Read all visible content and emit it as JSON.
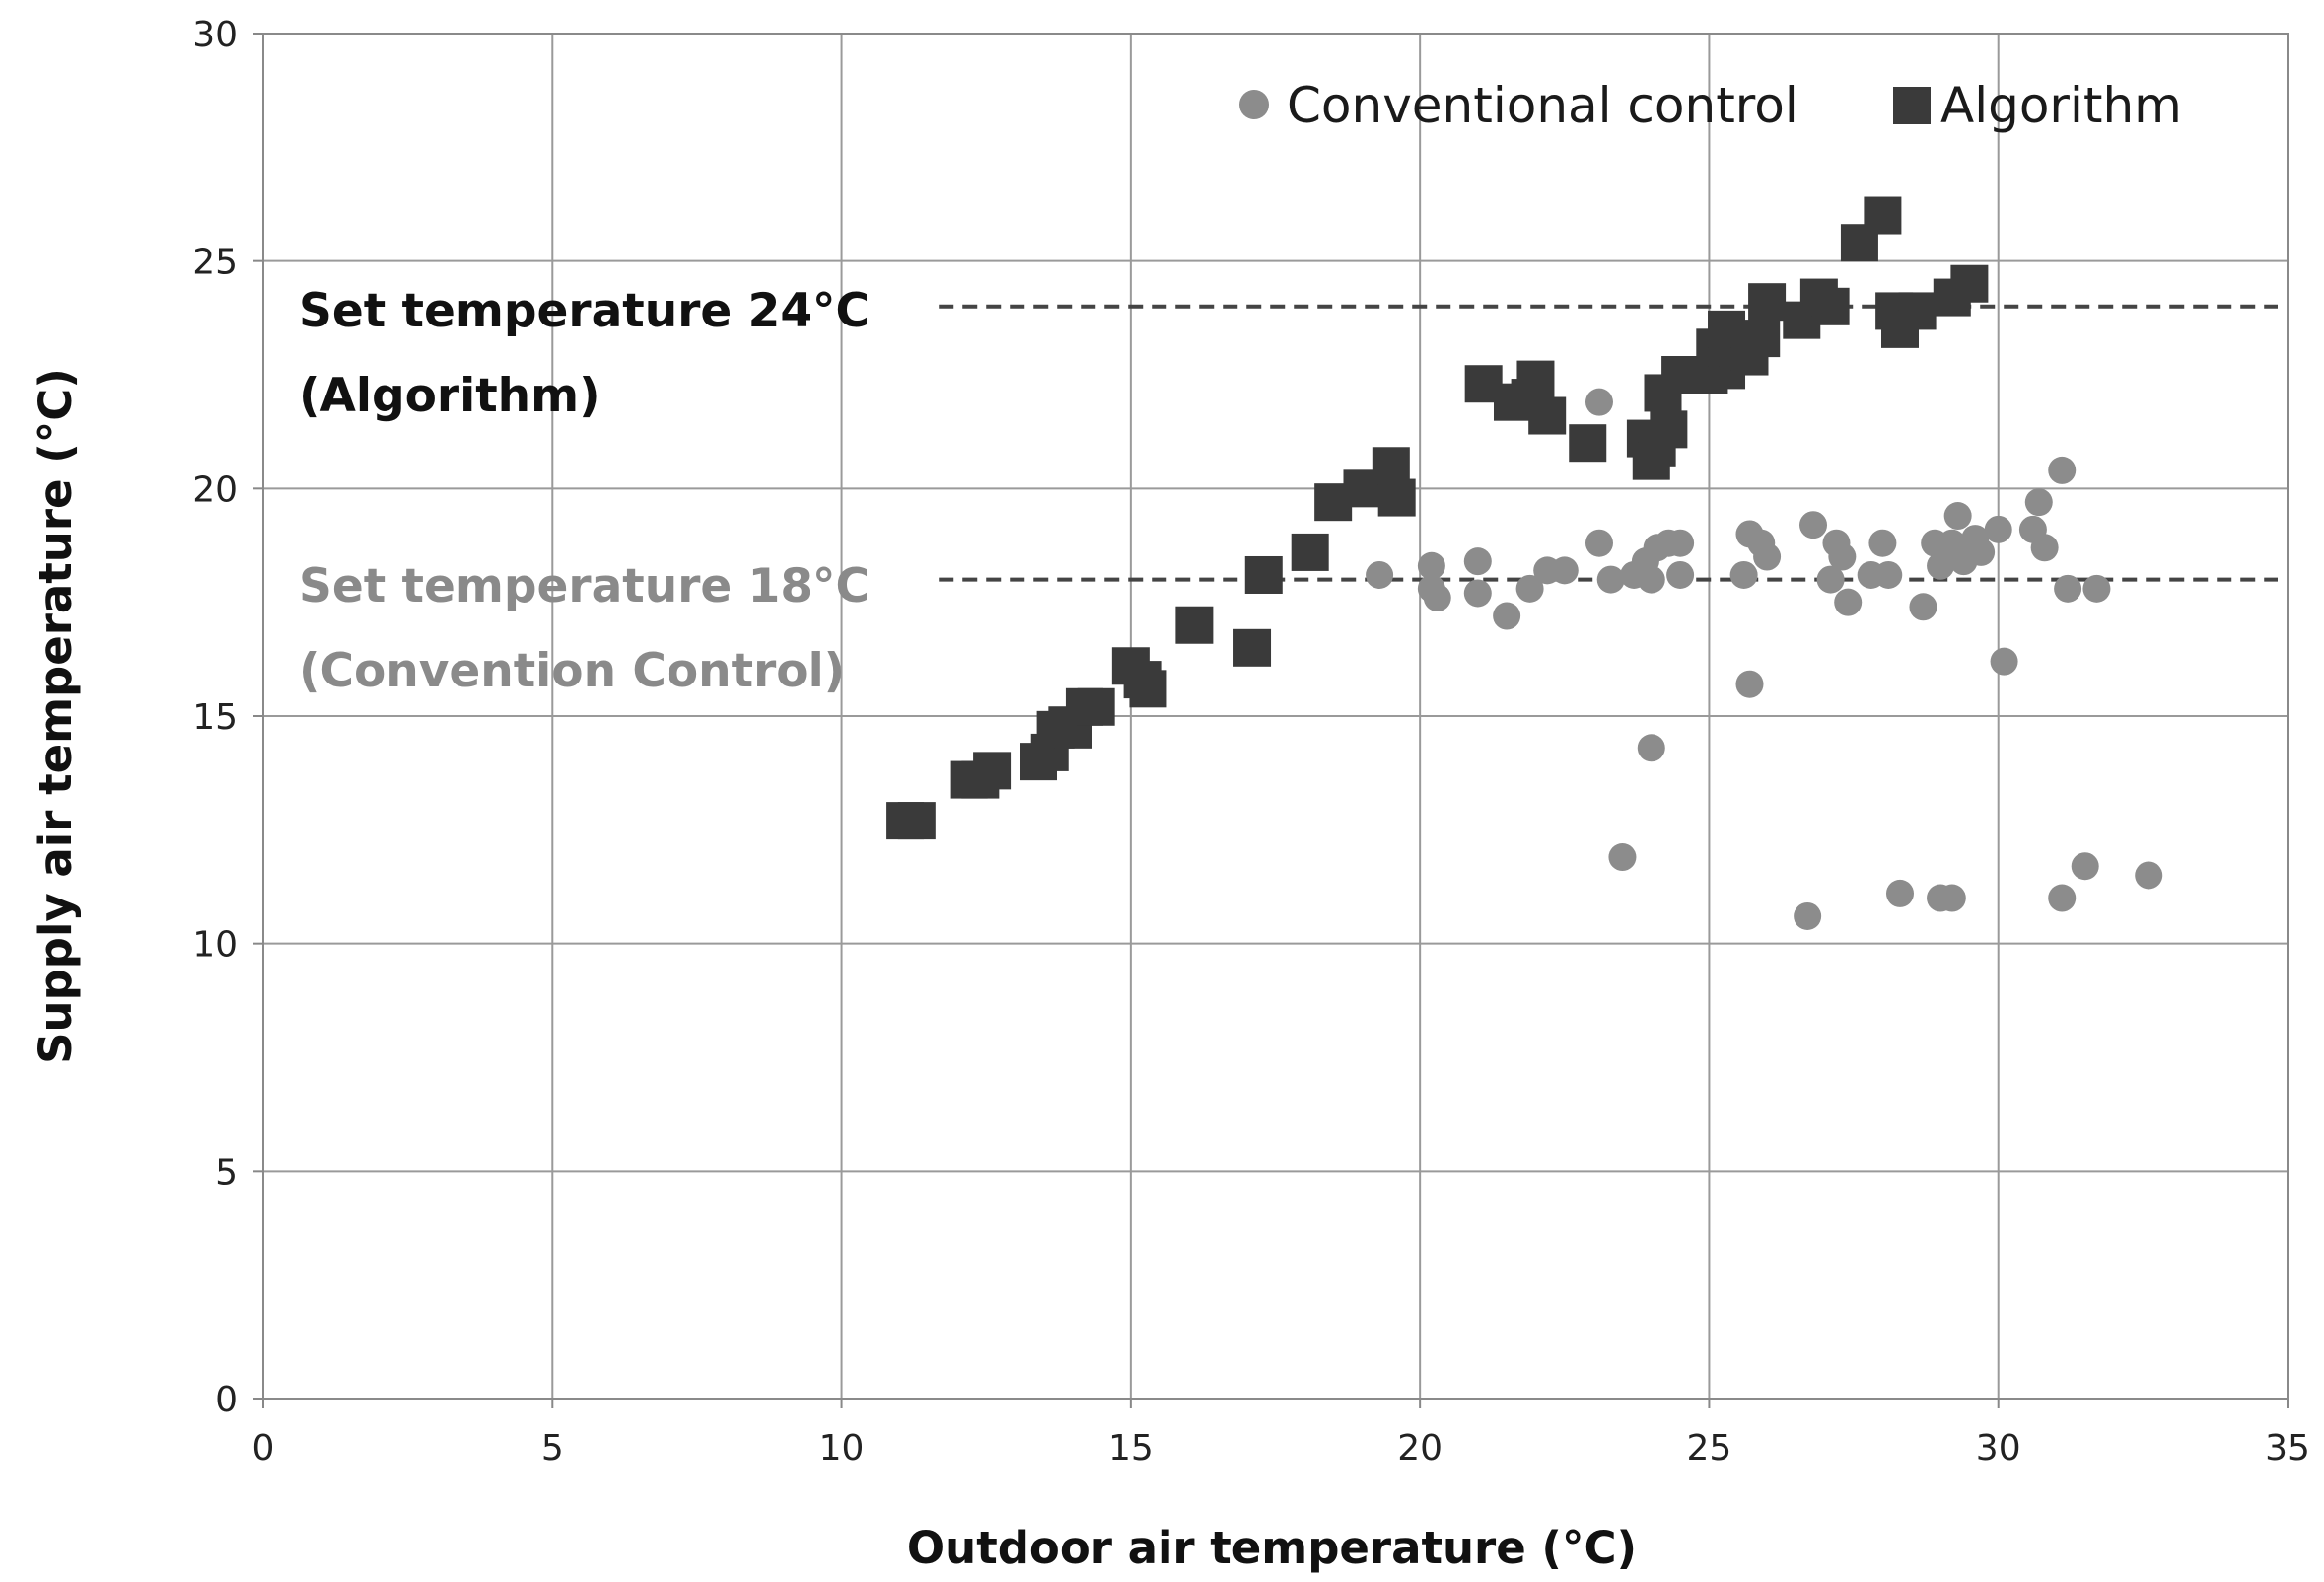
{
  "chart_data": {
    "type": "scatter",
    "title": "",
    "xlabel": "Outdoor air temperature (°C)",
    "ylabel": "Supply air temperature (°C)",
    "xlim": [
      0,
      35
    ],
    "ylim": [
      0,
      30
    ],
    "xticks": [
      0,
      5,
      10,
      15,
      20,
      25,
      30,
      35
    ],
    "yticks": [
      0,
      5,
      10,
      15,
      20,
      25,
      30
    ],
    "grid": true,
    "legend_position": "top-right",
    "colors": {
      "conventional": "#8c8c8c",
      "algorithm": "#3a3a3a",
      "grid": "#9a9a9a",
      "set_line": "#444444"
    },
    "series": [
      {
        "name": "Conventional control",
        "marker": "circle",
        "points": [
          [
            19.3,
            18.1
          ],
          [
            20.2,
            18.3
          ],
          [
            20.2,
            17.8
          ],
          [
            20.3,
            17.6
          ],
          [
            21.0,
            18.4
          ],
          [
            21.0,
            17.7
          ],
          [
            21.5,
            17.2
          ],
          [
            21.9,
            17.8
          ],
          [
            22.2,
            18.2
          ],
          [
            22.5,
            18.2
          ],
          [
            23.1,
            18.8
          ],
          [
            23.1,
            21.9
          ],
          [
            23.3,
            18.0
          ],
          [
            23.5,
            11.9
          ],
          [
            23.7,
            18.1
          ],
          [
            23.9,
            18.4
          ],
          [
            24.0,
            14.3
          ],
          [
            24.0,
            18.0
          ],
          [
            24.1,
            18.7
          ],
          [
            24.3,
            18.8
          ],
          [
            24.5,
            18.1
          ],
          [
            24.5,
            18.8
          ],
          [
            25.6,
            18.1
          ],
          [
            25.7,
            19.0
          ],
          [
            25.7,
            15.7
          ],
          [
            25.9,
            18.8
          ],
          [
            26.0,
            18.5
          ],
          [
            26.7,
            10.6
          ],
          [
            26.8,
            19.2
          ],
          [
            27.1,
            18.0
          ],
          [
            27.2,
            18.8
          ],
          [
            27.3,
            18.5
          ],
          [
            27.4,
            17.5
          ],
          [
            27.8,
            18.1
          ],
          [
            28.0,
            18.8
          ],
          [
            28.1,
            18.1
          ],
          [
            28.3,
            11.1
          ],
          [
            28.7,
            17.4
          ],
          [
            28.9,
            18.8
          ],
          [
            29.0,
            18.3
          ],
          [
            29.0,
            11.0
          ],
          [
            29.2,
            11.0
          ],
          [
            29.2,
            18.8
          ],
          [
            29.3,
            19.4
          ],
          [
            29.4,
            18.4
          ],
          [
            29.6,
            18.9
          ],
          [
            29.7,
            18.6
          ],
          [
            30.0,
            19.1
          ],
          [
            30.1,
            16.2
          ],
          [
            30.6,
            19.1
          ],
          [
            30.7,
            19.7
          ],
          [
            30.8,
            18.7
          ],
          [
            31.1,
            20.4
          ],
          [
            31.1,
            11.0
          ],
          [
            31.2,
            17.8
          ],
          [
            31.5,
            11.7
          ],
          [
            31.7,
            17.8
          ],
          [
            32.6,
            11.5
          ]
        ]
      },
      {
        "name": "Algorithm",
        "marker": "square",
        "points": [
          [
            11.1,
            12.7
          ],
          [
            11.3,
            12.7
          ],
          [
            12.2,
            13.6
          ],
          [
            12.4,
            13.6
          ],
          [
            12.6,
            13.8
          ],
          [
            13.4,
            14.0
          ],
          [
            13.6,
            14.2
          ],
          [
            13.7,
            14.7
          ],
          [
            13.9,
            14.8
          ],
          [
            14.0,
            14.7
          ],
          [
            14.2,
            15.2
          ],
          [
            14.4,
            15.2
          ],
          [
            15.0,
            16.1
          ],
          [
            15.2,
            15.8
          ],
          [
            15.3,
            15.6
          ],
          [
            16.1,
            17.0
          ],
          [
            17.1,
            16.5
          ],
          [
            17.3,
            18.1
          ],
          [
            18.1,
            18.6
          ],
          [
            18.5,
            19.7
          ],
          [
            19.0,
            20.0
          ],
          [
            19.5,
            20.5
          ],
          [
            19.6,
            19.8
          ],
          [
            21.1,
            22.3
          ],
          [
            21.6,
            21.9
          ],
          [
            21.9,
            22.0
          ],
          [
            22.0,
            22.4
          ],
          [
            22.2,
            21.6
          ],
          [
            22.9,
            21.0
          ],
          [
            23.9,
            21.1
          ],
          [
            24.0,
            20.6
          ],
          [
            24.1,
            20.9
          ],
          [
            24.3,
            21.3
          ],
          [
            24.2,
            22.1
          ],
          [
            24.5,
            22.5
          ],
          [
            25.0,
            22.5
          ],
          [
            25.3,
            22.6
          ],
          [
            25.1,
            23.1
          ],
          [
            25.5,
            23.0
          ],
          [
            25.3,
            23.5
          ],
          [
            25.7,
            22.9
          ],
          [
            25.9,
            23.3
          ],
          [
            26.0,
            24.1
          ],
          [
            26.6,
            23.7
          ],
          [
            26.9,
            24.2
          ],
          [
            27.1,
            24.0
          ],
          [
            27.6,
            25.4
          ],
          [
            28.0,
            26.0
          ],
          [
            28.2,
            23.9
          ],
          [
            28.3,
            23.5
          ],
          [
            28.6,
            23.9
          ],
          [
            29.2,
            24.2
          ],
          [
            29.5,
            24.5
          ]
        ]
      }
    ],
    "reference_lines": [
      {
        "y": 24,
        "x_start": 11,
        "x_end": 35,
        "style": "dashed",
        "label_line1": "Set temperature 24°C",
        "label_line2": "(Algorithm)"
      },
      {
        "y": 18,
        "x_start": 11,
        "x_end": 35,
        "style": "dashed",
        "label_line1": "Set temperature 18°C",
        "label_line2": "(Convention Control)"
      }
    ]
  }
}
